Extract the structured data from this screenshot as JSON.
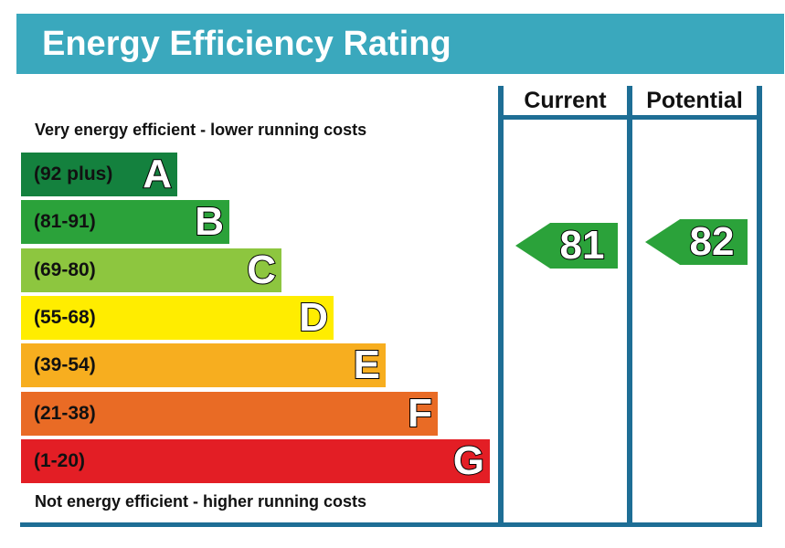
{
  "header": {
    "title": "Energy Efficiency Rating"
  },
  "notes": {
    "top": "Very energy efficient - lower running costs",
    "bottom": "Not energy efficient - higher running costs"
  },
  "columns": {
    "current": "Current",
    "potential": "Potential"
  },
  "chart_data": {
    "type": "bar",
    "title": "Energy Efficiency Rating",
    "bands": [
      {
        "letter": "A",
        "range": "(92 plus)",
        "color": "#14813e"
      },
      {
        "letter": "B",
        "range": "(81-91)",
        "color": "#2ba23a"
      },
      {
        "letter": "C",
        "range": "(69-80)",
        "color": "#8dc63f"
      },
      {
        "letter": "D",
        "range": "(55-68)",
        "color": "#ffed00"
      },
      {
        "letter": "E",
        "range": "(39-54)",
        "color": "#f7ae1f"
      },
      {
        "letter": "F",
        "range": "(21-38)",
        "color": "#e96b25"
      },
      {
        "letter": "G",
        "range": "(1-20)",
        "color": "#e31e25"
      }
    ],
    "current": {
      "value": "81",
      "band": "B",
      "color": "#2ba23a"
    },
    "potential": {
      "value": "82",
      "band": "B",
      "color": "#2ba23a"
    }
  }
}
